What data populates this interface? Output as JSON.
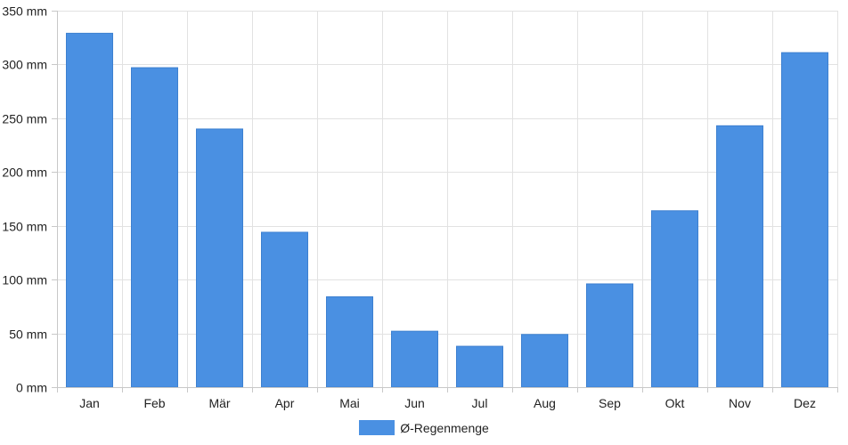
{
  "chart_data": {
    "type": "bar",
    "categories": [
      "Jan",
      "Feb",
      "Mär",
      "Apr",
      "Mai",
      "Jun",
      "Jul",
      "Aug",
      "Sep",
      "Okt",
      "Nov",
      "Dez"
    ],
    "series": [
      {
        "name": "Ø-Regenmenge",
        "values": [
          329,
          297,
          240,
          144,
          84,
          52,
          38,
          49,
          96,
          164,
          243,
          311
        ],
        "color": "#4a90e2"
      }
    ],
    "ylim": [
      0,
      350
    ],
    "yticks": [
      0,
      50,
      100,
      150,
      200,
      250,
      300,
      350
    ],
    "ytick_suffix": " mm",
    "grid": true,
    "legend_position": "bottom"
  }
}
